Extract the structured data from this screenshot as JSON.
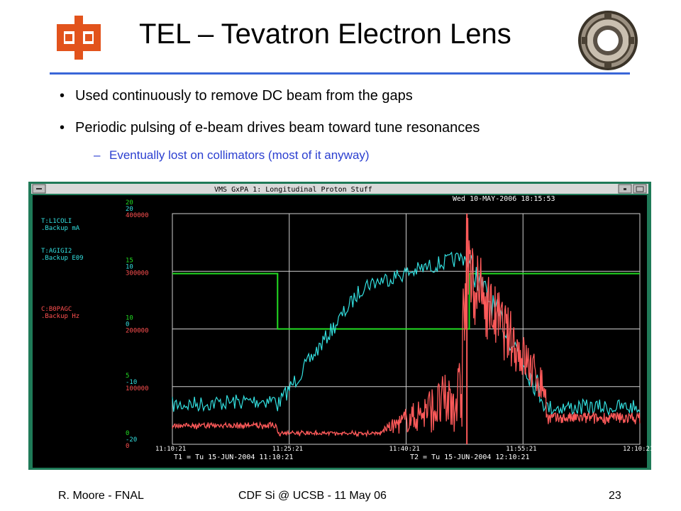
{
  "slide": {
    "title": "TEL – Tevatron Electron Lens",
    "bullets": [
      "Used continuously to remove DC beam from the gaps",
      "Periodic pulsing of e-beam drives beam toward tune resonances"
    ],
    "sub_bullet": "Eventually lost on collimators  (most of it anyway)",
    "footer_left": "R. Moore - FNAL",
    "footer_center": "CDF Si @ UCSB - 11 May 06",
    "page_number": "23",
    "accent_color": "#3a66d8",
    "logo_icon": "fermilab-logo-icon",
    "magnet_icon": "electron-lens-photo-icon"
  },
  "plot_window": {
    "window_title": "VMS GxPA 1: Longitudinal Proton Stuff",
    "timestamp": "Wed 10-MAY-2006 18:15:53",
    "t1": "T1 = Tu 15-JUN-2004 11:10:21",
    "t2": "T2 = Tu 15-JUN-2004 12:10:21",
    "channels": [
      {
        "name": "T:L1COLI",
        "backup": ".Backup  mA",
        "color": "#33e0e0"
      },
      {
        "name": "T:AGIGI2",
        "backup": ".Backup E09",
        "color": "#33e0e0"
      },
      {
        "name": "C:B0PAGC",
        "backup": ".Backup Hz",
        "color": "#ff5050"
      }
    ],
    "axis_green": [
      "20",
      "15",
      "10",
      "5",
      "0"
    ],
    "axis_cyan": [
      "20",
      "10",
      "0",
      "-10",
      "-20"
    ],
    "axis_red": [
      "400000",
      "300000",
      "200000",
      "100000",
      "0"
    ],
    "time_ticks": [
      "11:10:21",
      "11:25:21",
      "11:40:21",
      "11:55:21",
      "12:10:21"
    ],
    "colors": {
      "background": "#000000",
      "frame": "#1f7a58",
      "grid": "#d0d0d0",
      "green_trace": "#22dd22",
      "cyan_trace": "#33e0e0",
      "red_trace": "#ff5a5a"
    }
  }
}
